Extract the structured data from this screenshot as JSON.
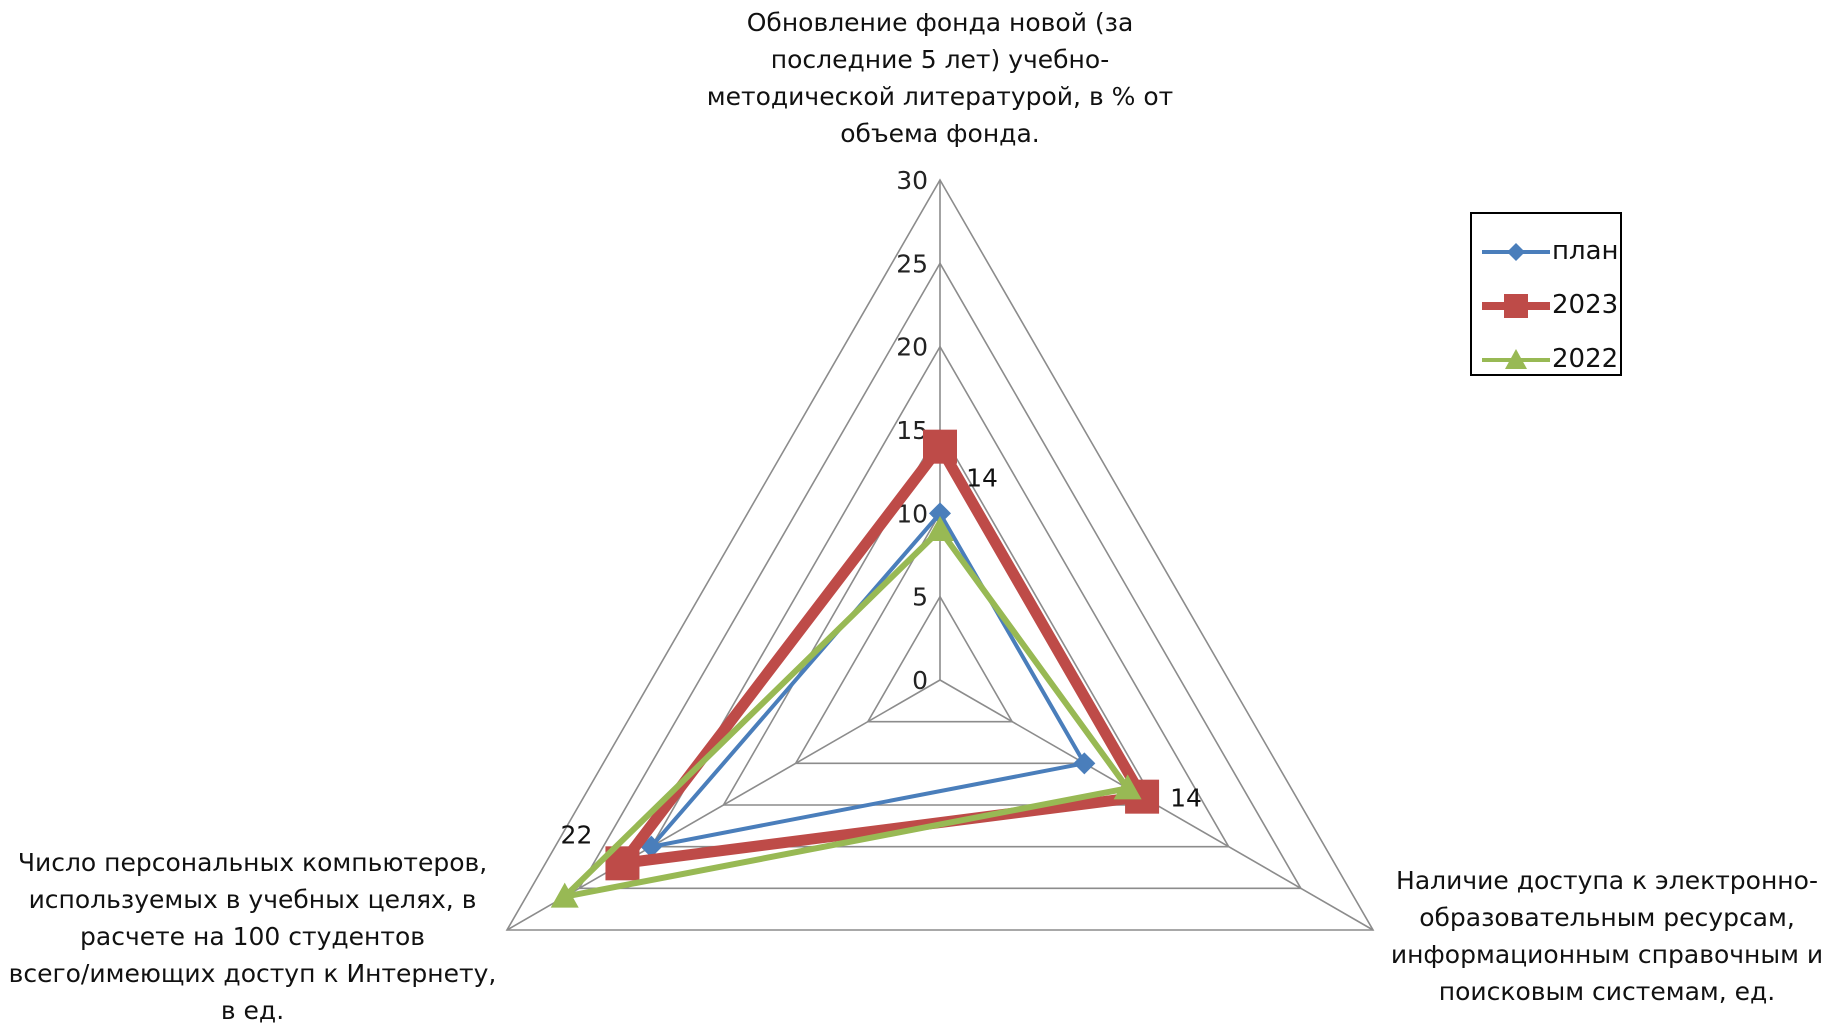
{
  "chart_data": {
    "type": "radar",
    "axes": [
      "Обновление фонда новой (за\nпоследние 5 лет) учебно-\nметодической литературой,  в % от\nобъема фонда.",
      "Наличие доступа к электронно-\nобразовательным ресурсам,\nинформационным справочным и\nпоисковым системам, ед.",
      "Число персональных компьютеров,\nиспользуемых в учебных целях, в\nрасчете на 100 студентов\nвсего/имеющих доступ к Интернету,\nв ед."
    ],
    "tick_labels": [
      "0",
      "5",
      "10",
      "15",
      "20",
      "25",
      "30"
    ],
    "range": [
      0,
      30
    ],
    "grid": true,
    "legend_position": "right",
    "series": [
      {
        "name": "план",
        "values": [
          10,
          10,
          20
        ],
        "color": "#4a7ebb",
        "marker": "diamond"
      },
      {
        "name": "2023",
        "values": [
          14,
          14,
          22
        ],
        "color": "#be4b48",
        "marker": "square"
      },
      {
        "name": "2022",
        "values": [
          9,
          13,
          26
        ],
        "color": "#98b954",
        "marker": "triangle"
      }
    ],
    "data_labels": [
      {
        "series": "2023",
        "axis": 0,
        "text": "14"
      },
      {
        "series": "2023",
        "axis": 1,
        "text": "14"
      },
      {
        "series": "2023",
        "axis": 2,
        "text": "22"
      }
    ]
  }
}
